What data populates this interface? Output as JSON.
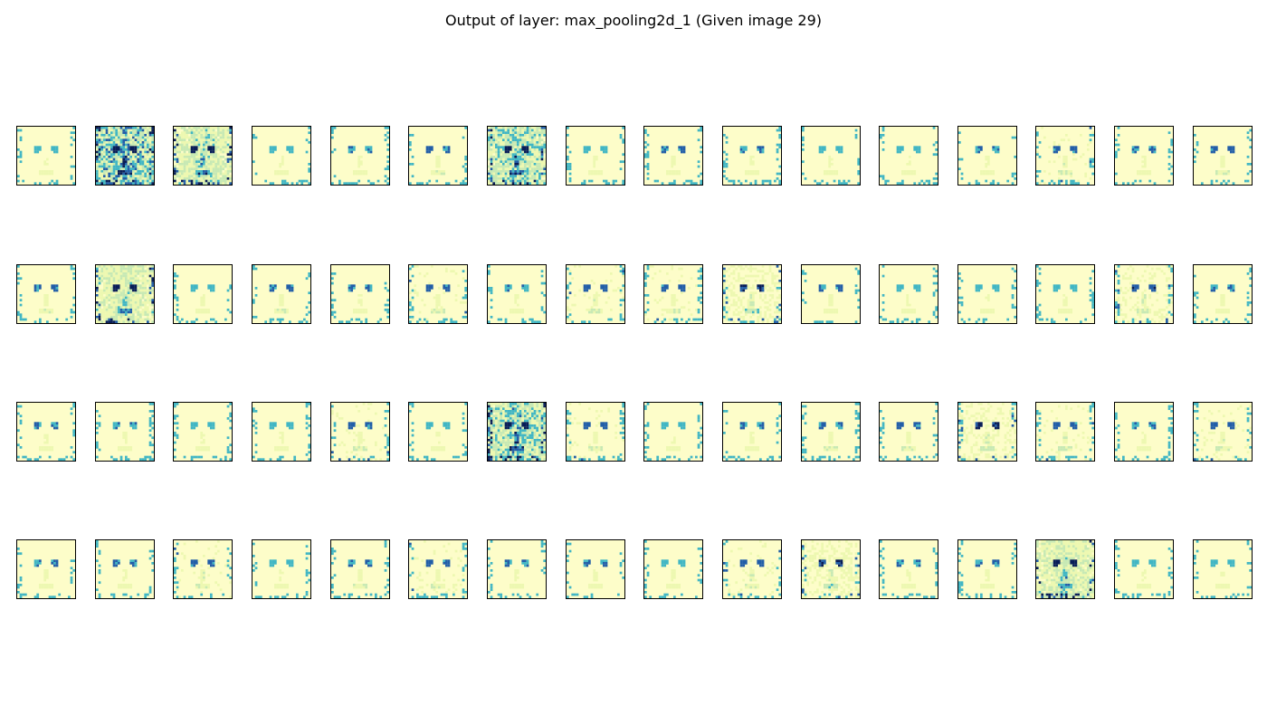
{
  "figure": {
    "title": "Output of layer: max_pooling2d_1 (Given image 29)"
  },
  "grid": {
    "rows": 4,
    "cols": 16,
    "colormap": "YlGnBu",
    "colors": {
      "low": "#ffffd9",
      "mid_low": "#edf8b1",
      "mid": "#c7e9b4",
      "mid_high": "#41b6c4",
      "high": "#225ea8",
      "max": "#081d58"
    },
    "intensity": [
      [
        0.15,
        0.85,
        0.6,
        0.15,
        0.2,
        0.25,
        0.7,
        0.12,
        0.2,
        0.2,
        0.15,
        0.1,
        0.2,
        0.3,
        0.2,
        0.25
      ],
      [
        0.25,
        0.55,
        0.15,
        0.25,
        0.2,
        0.3,
        0.18,
        0.3,
        0.3,
        0.45,
        0.2,
        0.15,
        0.1,
        0.15,
        0.35,
        0.2
      ],
      [
        0.2,
        0.18,
        0.15,
        0.15,
        0.3,
        0.12,
        0.75,
        0.3,
        0.1,
        0.2,
        0.25,
        0.25,
        0.4,
        0.3,
        0.2,
        0.3
      ],
      [
        0.2,
        0.2,
        0.3,
        0.15,
        0.25,
        0.3,
        0.2,
        0.2,
        0.15,
        0.3,
        0.45,
        0.2,
        0.2,
        0.55,
        0.15,
        0.15
      ]
    ]
  }
}
